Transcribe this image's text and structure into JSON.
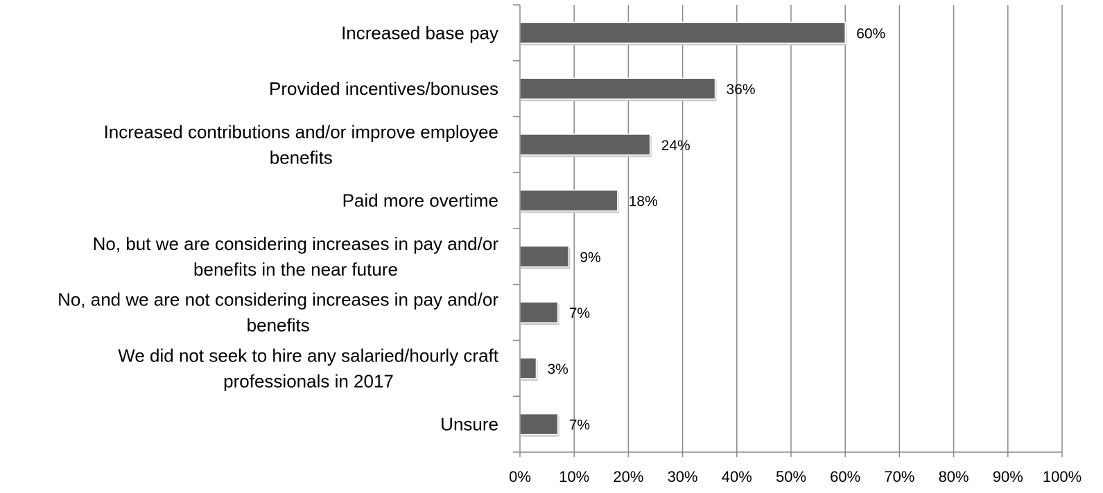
{
  "chart_data": {
    "type": "bar",
    "orientation": "horizontal",
    "categories": [
      [
        "Increased base pay"
      ],
      [
        "Provided incentives/bonuses"
      ],
      [
        "Increased contributions and/or improve employee",
        "benefits"
      ],
      [
        "Paid more overtime"
      ],
      [
        "No, but we are considering increases in pay and/or",
        "benefits in the near future"
      ],
      [
        "No, and we are not considering increases in pay and/or",
        "benefits"
      ],
      [
        "We did not seek to hire any salaried/hourly craft",
        "professionals in 2017"
      ],
      [
        "Unsure"
      ]
    ],
    "values": [
      60,
      36,
      24,
      18,
      9,
      7,
      3,
      7
    ],
    "data_labels": [
      "60%",
      "36%",
      "24%",
      "18%",
      "9%",
      "7%",
      "3%",
      "7%"
    ],
    "xlim": [
      0,
      100
    ],
    "xticks": [
      0,
      10,
      20,
      30,
      40,
      50,
      60,
      70,
      80,
      90,
      100
    ],
    "xtick_labels": [
      "0%",
      "10%",
      "20%",
      "30%",
      "40%",
      "50%",
      "60%",
      "70%",
      "80%",
      "90%",
      "100%"
    ],
    "grid": "vertical",
    "legend": "none",
    "colors": {
      "bar": "#606060",
      "bar_outline": "#ffffff",
      "grid": "#8a8a8a",
      "axis": "#8a8a8a"
    }
  }
}
